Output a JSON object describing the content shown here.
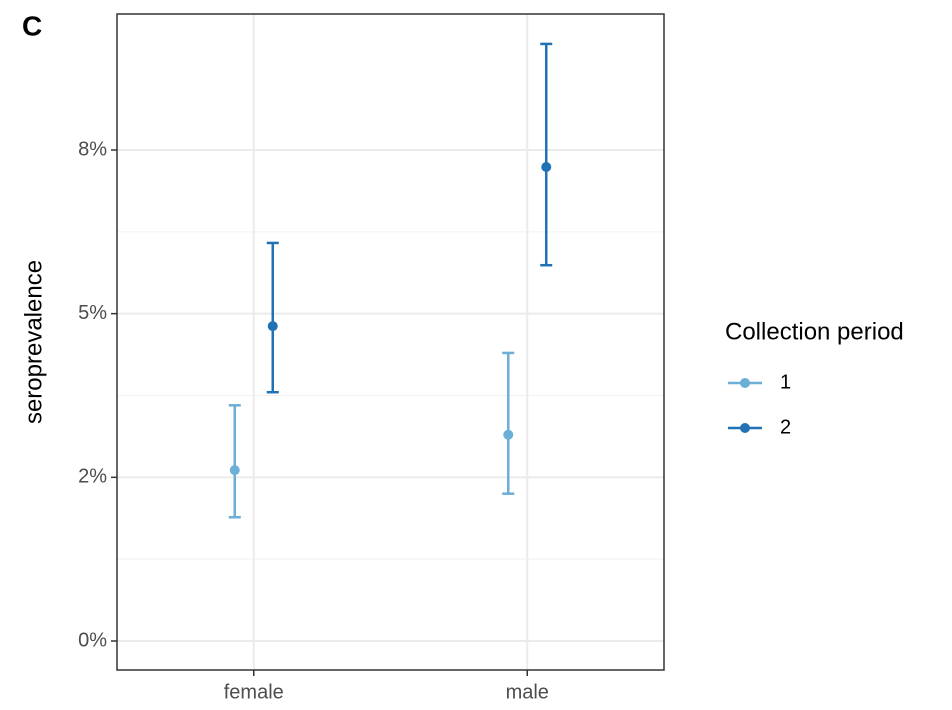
{
  "chart_data": {
    "type": "errorbar",
    "tag": "C",
    "ylabel": "seroprevalence",
    "categories": [
      "female",
      "male"
    ],
    "legend_title": "Collection period",
    "series": [
      {
        "name": "1",
        "color": "#6baed6",
        "values": [
          2.61,
          3.15
        ],
        "lower": [
          1.89,
          2.25
        ],
        "upper": [
          3.6,
          4.4
        ]
      },
      {
        "name": "2",
        "color": "#2171b5",
        "values": [
          4.81,
          7.24
        ],
        "lower": [
          3.8,
          5.74
        ],
        "upper": [
          6.08,
          9.12
        ]
      }
    ],
    "ylim": [
      -0.443,
      9.577
    ],
    "yticks": [
      {
        "value": 0,
        "label": "0%"
      },
      {
        "value": 2.5,
        "label": "2%"
      },
      {
        "value": 5,
        "label": "5%"
      },
      {
        "value": 7.5,
        "label": "8%"
      }
    ],
    "grid": true,
    "legend": "right"
  }
}
